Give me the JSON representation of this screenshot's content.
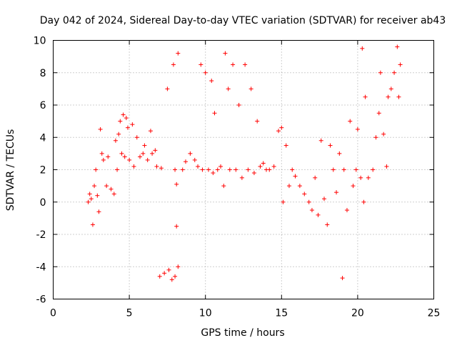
{
  "chart_data": {
    "type": "scatter",
    "title": "Day 042 of 2024, Sidereal Day-to-day VTEC variation (SDTVAR) for receiver ab43",
    "xlabel": "GPS time / hours",
    "ylabel": "SDTVAR / TECUs",
    "xlim": [
      0,
      25
    ],
    "ylim": [
      -6,
      10
    ],
    "xticks": [
      0,
      5,
      10,
      15,
      20,
      25
    ],
    "yticks": [
      -6,
      -4,
      -2,
      0,
      2,
      4,
      6,
      8,
      10
    ],
    "grid": true,
    "marker": "+",
    "color": "#ff0000",
    "series": [
      {
        "name": "SDTVAR",
        "points": [
          [
            2.3,
            0.0
          ],
          [
            2.4,
            0.5
          ],
          [
            2.5,
            0.2
          ],
          [
            2.6,
            -1.4
          ],
          [
            2.7,
            1.0
          ],
          [
            2.8,
            2.0
          ],
          [
            2.9,
            0.4
          ],
          [
            3.0,
            -0.6
          ],
          [
            3.1,
            4.5
          ],
          [
            3.2,
            3.0
          ],
          [
            3.3,
            2.6
          ],
          [
            3.5,
            1.0
          ],
          [
            3.6,
            2.8
          ],
          [
            3.8,
            0.8
          ],
          [
            4.0,
            0.5
          ],
          [
            4.1,
            3.8
          ],
          [
            4.2,
            2.0
          ],
          [
            4.3,
            4.2
          ],
          [
            4.4,
            5.0
          ],
          [
            4.5,
            3.0
          ],
          [
            4.6,
            5.4
          ],
          [
            4.7,
            2.8
          ],
          [
            4.8,
            5.2
          ],
          [
            4.9,
            4.6
          ],
          [
            5.0,
            2.6
          ],
          [
            5.2,
            4.8
          ],
          [
            5.3,
            2.2
          ],
          [
            5.5,
            4.0
          ],
          [
            5.7,
            2.8
          ],
          [
            5.9,
            3.0
          ],
          [
            6.0,
            3.5
          ],
          [
            6.2,
            2.6
          ],
          [
            6.4,
            4.4
          ],
          [
            6.5,
            3.0
          ],
          [
            6.7,
            3.2
          ],
          [
            6.8,
            2.2
          ],
          [
            7.0,
            -4.6
          ],
          [
            7.1,
            2.1
          ],
          [
            7.3,
            -4.4
          ],
          [
            7.5,
            7.0
          ],
          [
            7.6,
            -4.2
          ],
          [
            7.8,
            -4.8
          ],
          [
            7.9,
            8.5
          ],
          [
            8.0,
            -4.6
          ],
          [
            8.0,
            2.0
          ],
          [
            8.1,
            -1.5
          ],
          [
            8.1,
            1.1
          ],
          [
            8.2,
            9.2
          ],
          [
            8.2,
            -4.0
          ],
          [
            8.5,
            2.0
          ],
          [
            8.7,
            2.5
          ],
          [
            9.0,
            3.0
          ],
          [
            9.3,
            2.6
          ],
          [
            9.5,
            2.2
          ],
          [
            9.7,
            8.5
          ],
          [
            9.8,
            2.0
          ],
          [
            10.0,
            8.0
          ],
          [
            10.2,
            2.0
          ],
          [
            10.4,
            7.5
          ],
          [
            10.5,
            1.8
          ],
          [
            10.6,
            5.5
          ],
          [
            10.8,
            2.0
          ],
          [
            11.0,
            2.2
          ],
          [
            11.2,
            1.0
          ],
          [
            11.3,
            9.2
          ],
          [
            11.5,
            7.0
          ],
          [
            11.6,
            2.0
          ],
          [
            11.8,
            8.5
          ],
          [
            12.0,
            2.0
          ],
          [
            12.2,
            6.0
          ],
          [
            12.4,
            1.5
          ],
          [
            12.6,
            8.5
          ],
          [
            12.8,
            2.0
          ],
          [
            13.0,
            7.0
          ],
          [
            13.2,
            1.8
          ],
          [
            13.4,
            5.0
          ],
          [
            13.6,
            2.2
          ],
          [
            13.8,
            2.4
          ],
          [
            14.0,
            2.0
          ],
          [
            14.2,
            2.0
          ],
          [
            14.5,
            2.2
          ],
          [
            14.8,
            4.4
          ],
          [
            15.0,
            4.6
          ],
          [
            15.1,
            0.0
          ],
          [
            15.3,
            3.5
          ],
          [
            15.5,
            1.0
          ],
          [
            15.7,
            2.0
          ],
          [
            15.9,
            1.6
          ],
          [
            16.2,
            1.0
          ],
          [
            16.5,
            0.5
          ],
          [
            16.8,
            0.0
          ],
          [
            17.0,
            -0.5
          ],
          [
            17.2,
            1.5
          ],
          [
            17.4,
            -0.8
          ],
          [
            17.6,
            3.8
          ],
          [
            17.8,
            0.2
          ],
          [
            18.0,
            -1.4
          ],
          [
            18.2,
            3.5
          ],
          [
            18.4,
            2.0
          ],
          [
            18.6,
            0.6
          ],
          [
            18.8,
            3.0
          ],
          [
            19.0,
            -4.7
          ],
          [
            19.1,
            2.0
          ],
          [
            19.3,
            -0.5
          ],
          [
            19.5,
            5.0
          ],
          [
            19.7,
            1.0
          ],
          [
            19.9,
            2.0
          ],
          [
            20.0,
            4.5
          ],
          [
            20.2,
            1.5
          ],
          [
            20.3,
            9.5
          ],
          [
            20.4,
            0.0
          ],
          [
            20.5,
            6.5
          ],
          [
            20.7,
            1.5
          ],
          [
            21.0,
            2.0
          ],
          [
            21.2,
            4.0
          ],
          [
            21.4,
            5.5
          ],
          [
            21.5,
            8.0
          ],
          [
            21.7,
            4.2
          ],
          [
            21.9,
            2.2
          ],
          [
            22.0,
            6.5
          ],
          [
            22.2,
            7.0
          ],
          [
            22.4,
            8.0
          ],
          [
            22.6,
            9.6
          ],
          [
            22.7,
            6.5
          ],
          [
            22.8,
            8.5
          ]
        ]
      }
    ]
  }
}
